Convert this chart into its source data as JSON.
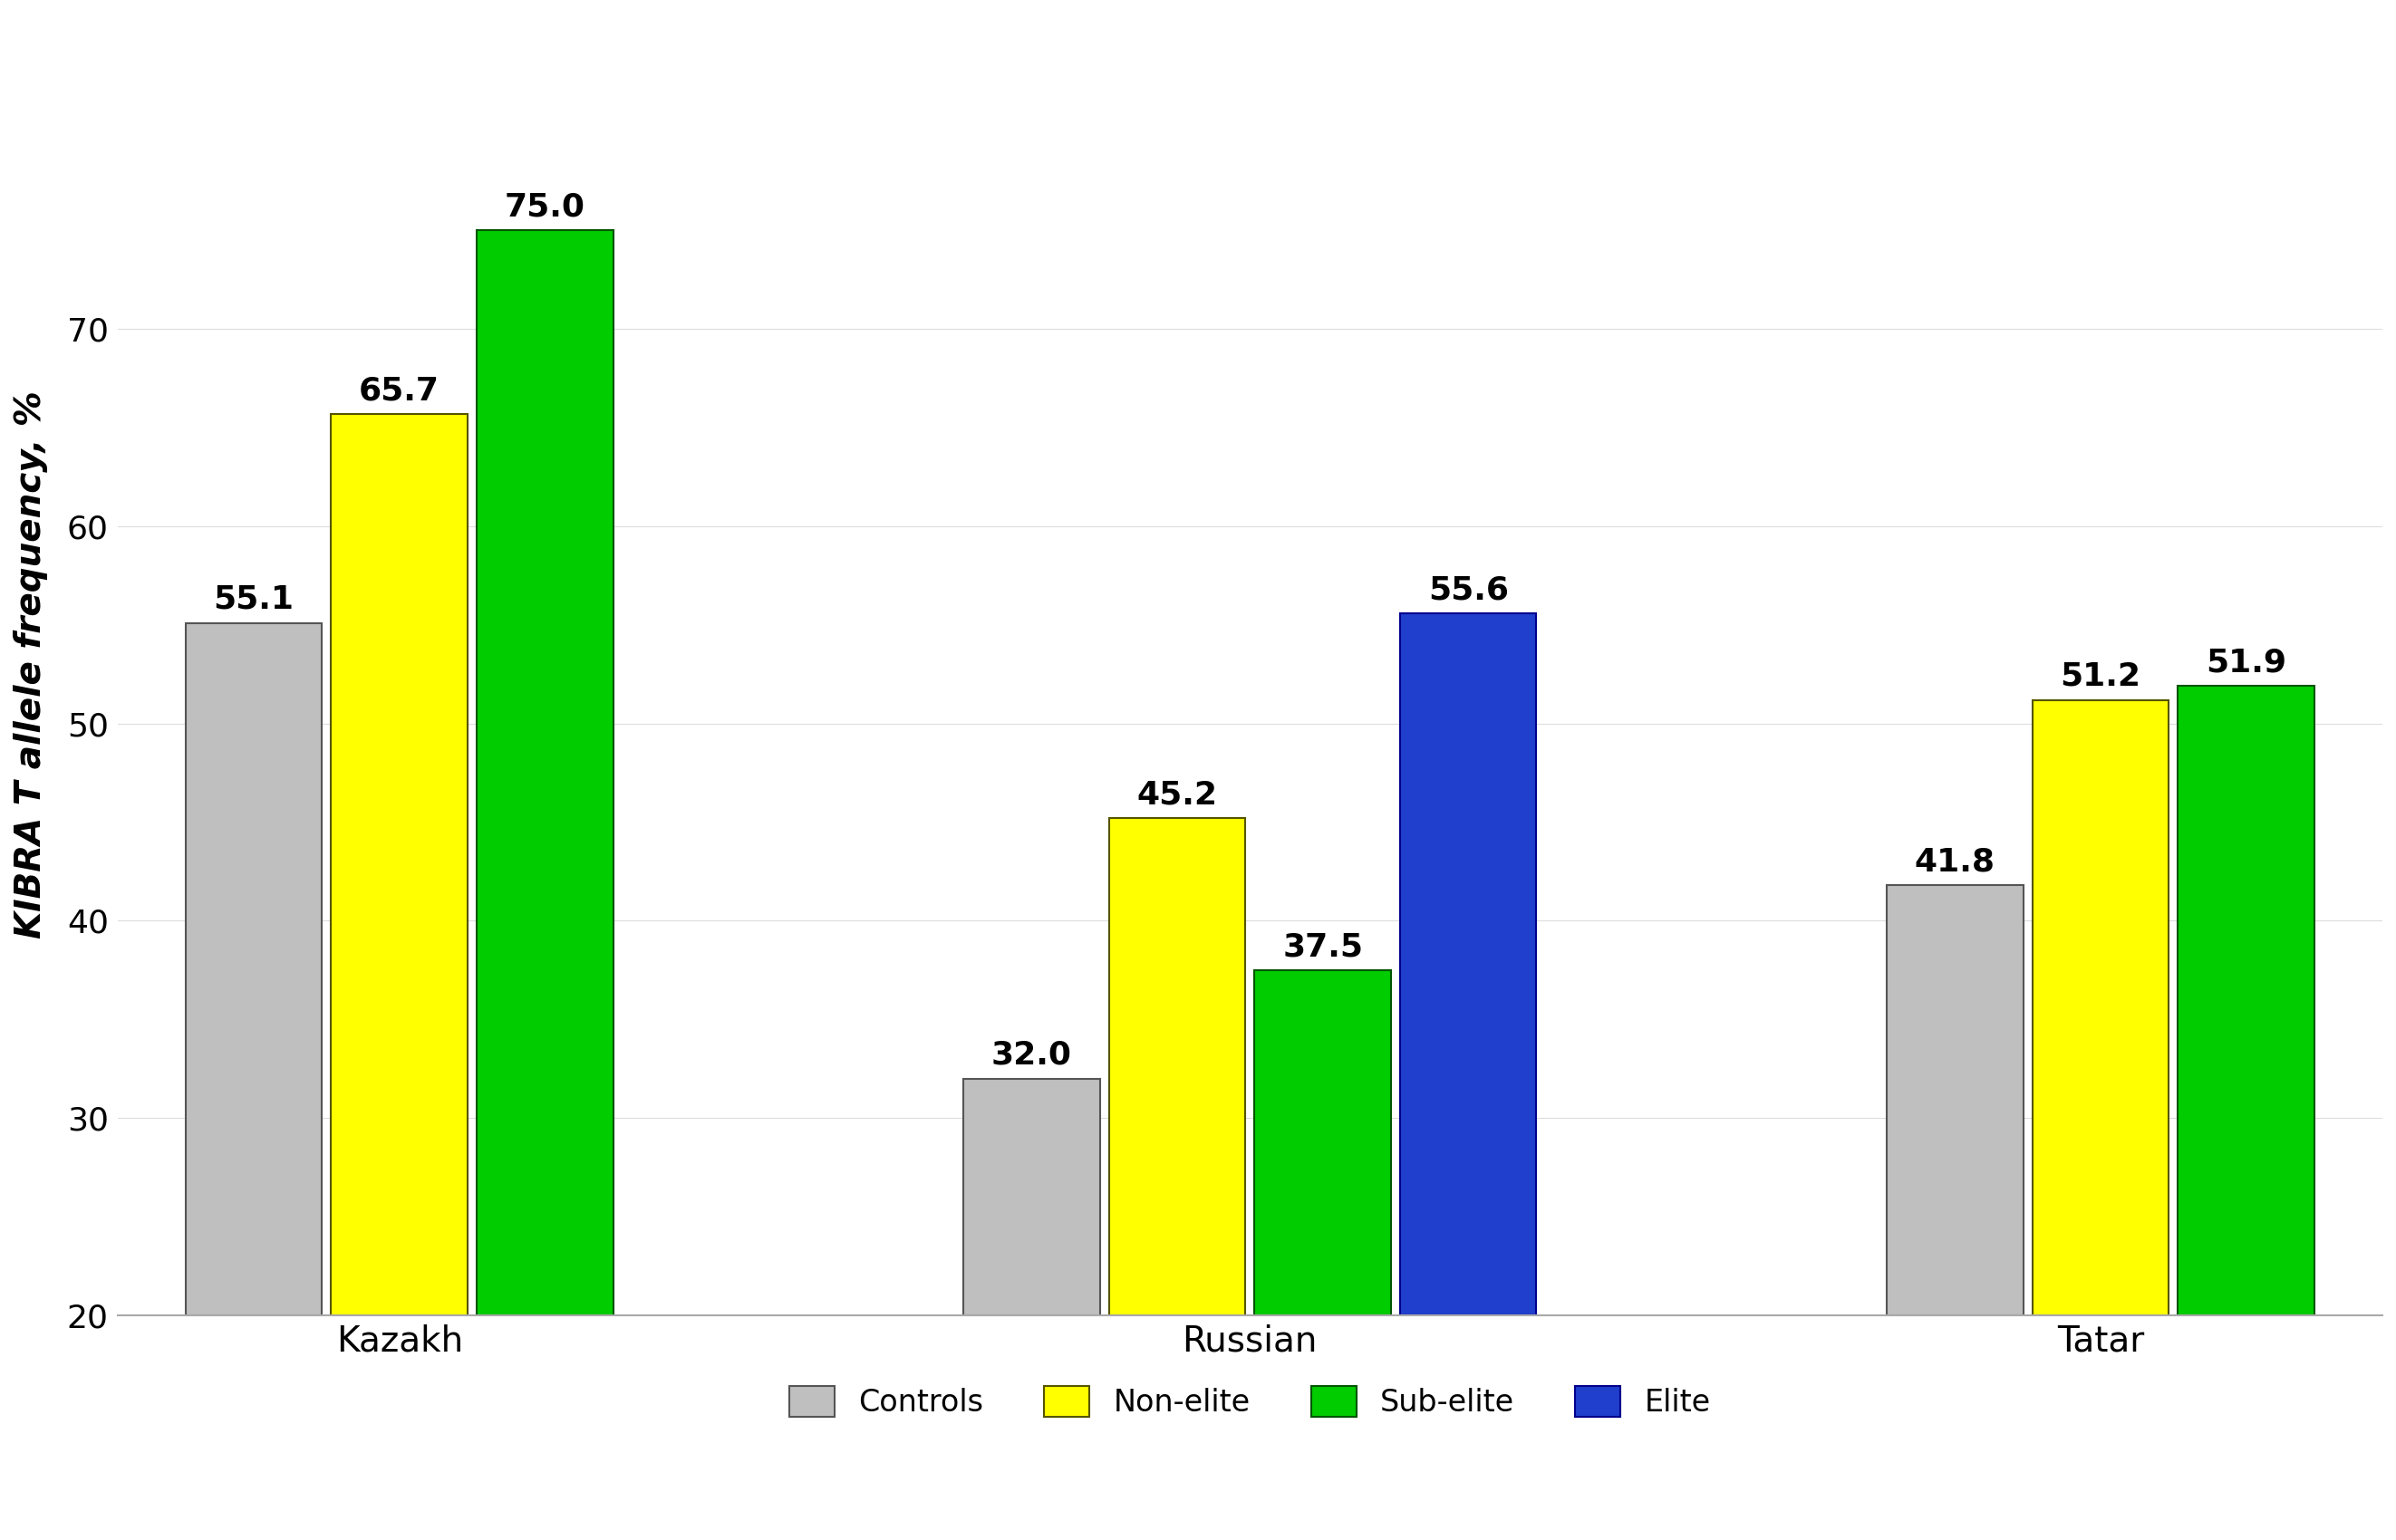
{
  "groups": [
    "Kazakh",
    "Russian",
    "Tatar"
  ],
  "categories": [
    "Controls",
    "Non-elite",
    "Sub-elite",
    "Elite"
  ],
  "values": {
    "Kazakh": [
      55.1,
      65.7,
      75.0,
      null
    ],
    "Russian": [
      32.0,
      45.2,
      37.5,
      55.6
    ],
    "Tatar": [
      41.8,
      51.2,
      51.9,
      null
    ]
  },
  "bar_colors": {
    "Controls": "#bfbfbf",
    "Non-elite": "#ffff00",
    "Sub-elite": "#00cc00",
    "Elite": "#1f3fcc"
  },
  "bar_edge_colors": {
    "Controls": "#555555",
    "Non-elite": "#555500",
    "Sub-elite": "#005500",
    "Elite": "#00008b"
  },
  "ylabel": "KIBRA T allele frequency, %",
  "ylim_min": 20,
  "ylim_max": 80,
  "yticks": [
    20,
    30,
    40,
    50,
    60,
    70
  ],
  "tick_fontsize": 26,
  "value_fontsize": 26,
  "legend_fontsize": 24,
  "ylabel_fontsize": 28,
  "group_label_fontsize": 28,
  "background_color": "#ffffff"
}
